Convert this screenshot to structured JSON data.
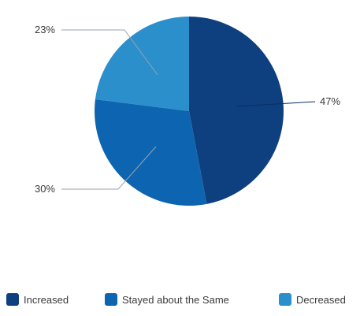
{
  "chart_data": {
    "type": "pie",
    "categories": [
      "Increased",
      "Stayed about the Same",
      "Decreased"
    ],
    "values": [
      47,
      30,
      23
    ],
    "labels": [
      "47%",
      "30%",
      "23%"
    ],
    "colors": [
      "#0e3f7f",
      "#0d64b0",
      "#2b8fcc"
    ],
    "title": "",
    "legend_position": "bottom"
  }
}
